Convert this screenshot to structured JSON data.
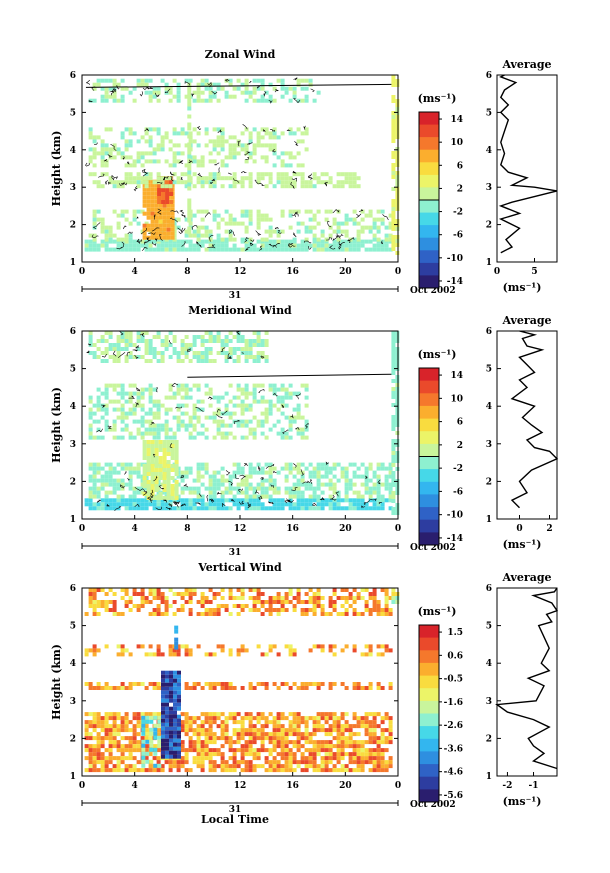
{
  "colors": {
    "ramp": [
      "#2a1e6e",
      "#2d3da0",
      "#2f62c6",
      "#2e8fe0",
      "#33b6ef",
      "#46d8e8",
      "#8ef0d0",
      "#c9f59c",
      "#ecf468",
      "#f9dc3f",
      "#fbae2e",
      "#f5782c",
      "#ea4a2b",
      "#d8232a"
    ]
  },
  "panels": [
    {
      "id": "zonal",
      "title": "Zonal Wind",
      "ylabel": "Height (km)",
      "yticks": [
        "1",
        "2",
        "3",
        "4",
        "5",
        "6"
      ],
      "xticks": [
        "0",
        "4",
        "8",
        "12",
        "16",
        "20",
        "0"
      ],
      "date_day": "31",
      "date_suffix": "Oct 2002",
      "xlabel": "",
      "cbar_unit": "(ms⁻¹)",
      "cbar_ticks": [
        "14",
        "10",
        "6",
        "2",
        "-2",
        "-6",
        "-10",
        "-14"
      ],
      "avg_title": "Average",
      "avg_xticks": [
        "0",
        "5"
      ],
      "avg_xlabel": "(ms⁻¹)"
    },
    {
      "id": "meridional",
      "title": "Meridional Wind",
      "ylabel": "Height (km)",
      "yticks": [
        "1",
        "2",
        "3",
        "4",
        "5",
        "6"
      ],
      "xticks": [
        "0",
        "4",
        "8",
        "12",
        "16",
        "20",
        "0"
      ],
      "date_day": "31",
      "date_suffix": "Oct 2002",
      "xlabel": "",
      "cbar_unit": "(ms⁻¹)",
      "cbar_ticks": [
        "14",
        "10",
        "6",
        "2",
        "-2",
        "-6",
        "-10",
        "-14"
      ],
      "avg_title": "Average",
      "avg_xticks": [
        "0",
        "2"
      ],
      "avg_xlabel": "(ms⁻¹)"
    },
    {
      "id": "vertical",
      "title": "Vertical Wind",
      "ylabel": "Height (km)",
      "yticks": [
        "1",
        "2",
        "3",
        "4",
        "5",
        "6"
      ],
      "xticks": [
        "0",
        "4",
        "8",
        "12",
        "16",
        "20",
        "0"
      ],
      "date_day": "31",
      "date_suffix": "Oct 2002",
      "xlabel": "Local Time",
      "cbar_unit": "(ms⁻¹)",
      "cbar_ticks": [
        "1.5",
        "0.6",
        "-0.5",
        "-1.6",
        "-2.6",
        "-3.6",
        "-4.6",
        "-5.6"
      ],
      "avg_title": "Average",
      "avg_xticks": [
        "-2",
        "-1"
      ],
      "avg_xlabel": "(ms⁻¹)"
    }
  ],
  "chart_data": [
    {
      "type": "heatmap",
      "title": "Zonal Wind",
      "ylabel": "Height (km)",
      "ylim": [
        1,
        6
      ],
      "xlim": [
        0,
        24
      ],
      "clim": [
        -16,
        16
      ],
      "blobs": [
        {
          "x": [
            0.2,
            23.5
          ],
          "y": [
            1.35,
            1.6
          ],
          "v": -1,
          "d": 0.85
        },
        {
          "x": [
            0.5,
            23.5
          ],
          "y": [
            1.6,
            2.4
          ],
          "v": 0.5,
          "d": 0.4
        },
        {
          "x": [
            4.6,
            6.8
          ],
          "y": [
            1.7,
            3.2
          ],
          "v": 8,
          "d": 0.95
        },
        {
          "x": [
            5.7,
            6.7
          ],
          "y": [
            2.6,
            3.3
          ],
          "v": 12,
          "d": 0.95
        },
        {
          "x": [
            0.5,
            21
          ],
          "y": [
            3.0,
            3.4
          ],
          "v": 1,
          "d": 0.6
        },
        {
          "x": [
            0.5,
            17
          ],
          "y": [
            3.6,
            4.6
          ],
          "v": 0.5,
          "d": 0.45
        },
        {
          "x": [
            0.5,
            18
          ],
          "y": [
            5.3,
            5.9
          ],
          "v": 0,
          "d": 0.45
        },
        {
          "x": [
            8.0,
            8.3
          ],
          "y": [
            1.8,
            5.8
          ],
          "v": 1,
          "d": 0.8
        },
        {
          "x": [
            23.5,
            24
          ],
          "y": [
            1.2,
            6.0
          ],
          "v": 3,
          "d": 0.8
        }
      ],
      "avg_profile": {
        "xlim": [
          0,
          8
        ],
        "x": [
          0.5,
          2.0,
          1.2,
          3.0,
          0.5,
          3.0,
          0.5,
          2.0,
          6.0,
          8.0,
          5.0,
          2.0,
          4.0,
          1.5,
          0.5,
          1.0,
          0.5,
          1.0,
          1.5,
          0.5,
          1.5,
          0.5,
          1.0,
          2.5,
          0.5,
          1.0
        ],
        "y": [
          1.25,
          1.4,
          1.6,
          1.9,
          2.15,
          2.3,
          2.5,
          2.6,
          2.8,
          2.9,
          3.0,
          3.05,
          3.25,
          3.4,
          3.6,
          3.9,
          4.2,
          4.5,
          4.8,
          5.0,
          5.2,
          5.4,
          5.6,
          5.8,
          5.95,
          6.0
        ]
      }
    },
    {
      "type": "heatmap",
      "title": "Meridional Wind",
      "ylabel": "Height (km)",
      "ylim": [
        1,
        6
      ],
      "xlim": [
        0,
        24
      ],
      "clim": [
        -16,
        16
      ],
      "blobs": [
        {
          "x": [
            0.2,
            23.5
          ],
          "y": [
            1.3,
            1.55
          ],
          "v": -3,
          "d": 0.9
        },
        {
          "x": [
            0.5,
            23.5
          ],
          "y": [
            1.55,
            2.5
          ],
          "v": -0.5,
          "d": 0.6
        },
        {
          "x": [
            4.6,
            7.2
          ],
          "y": [
            1.6,
            3.1
          ],
          "v": 2,
          "d": 0.85
        },
        {
          "x": [
            0.5,
            17
          ],
          "y": [
            3.2,
            4.6
          ],
          "v": 0,
          "d": 0.5
        },
        {
          "x": [
            0.5,
            14
          ],
          "y": [
            5.2,
            6.0
          ],
          "v": 0,
          "d": 0.55
        },
        {
          "x": [
            23.5,
            24
          ],
          "y": [
            1.2,
            6.0
          ],
          "v": -1,
          "d": 0.8
        }
      ],
      "avg_profile": {
        "xlim": [
          -1.5,
          2.5
        ],
        "x": [
          0.0,
          -0.5,
          0.5,
          0.0,
          0.8,
          2.5,
          2.0,
          1.0,
          0.5,
          1.5,
          0.8,
          0.2,
          1.0,
          -0.5,
          0.5,
          0.0,
          1.0,
          0.5,
          0.0,
          1.5,
          0.5,
          0.2,
          1.0,
          0.0,
          0.0
        ],
        "y": [
          1.3,
          1.5,
          1.7,
          2.0,
          2.3,
          2.6,
          2.8,
          2.9,
          3.1,
          3.3,
          3.5,
          3.7,
          4.0,
          4.2,
          4.5,
          4.7,
          4.9,
          5.1,
          5.3,
          5.5,
          5.6,
          5.8,
          5.9,
          6.0,
          6.0
        ]
      }
    },
    {
      "type": "heatmap",
      "title": "Vertical Wind",
      "xlabel": "Local Time",
      "ylabel": "Height (km)",
      "ylim": [
        1,
        6
      ],
      "xlim": [
        0,
        24
      ],
      "clim": [
        -6.6,
        2.2
      ],
      "blobs": [
        {
          "x": [
            0.2,
            23.5
          ],
          "y": [
            1.2,
            2.7
          ],
          "v": 0.2,
          "d": 0.75
        },
        {
          "x": [
            0.2,
            23.5
          ],
          "y": [
            3.3,
            3.5
          ],
          "v": 0.3,
          "d": 0.55
        },
        {
          "x": [
            0.2,
            23.5
          ],
          "y": [
            4.2,
            4.5
          ],
          "v": 0.2,
          "d": 0.4
        },
        {
          "x": [
            0.2,
            23.5
          ],
          "y": [
            5.3,
            6.0
          ],
          "v": 0.1,
          "d": 0.55
        },
        {
          "x": [
            4.5,
            5.8
          ],
          "y": [
            1.3,
            2.6
          ],
          "v": -2.5,
          "d": 0.7
        },
        {
          "x": [
            6.0,
            7.4
          ],
          "y": [
            1.5,
            3.8
          ],
          "v": -5.5,
          "d": 0.95
        },
        {
          "x": [
            7.0,
            7.3
          ],
          "y": [
            4.4,
            5.0
          ],
          "v": -4.5,
          "d": 0.9
        },
        {
          "x": [
            23.5,
            24
          ],
          "y": [
            5.6,
            6.0
          ],
          "v": -1.5,
          "d": 0.8
        }
      ],
      "avg_profile": {
        "xlim": [
          -2.4,
          -0.1
        ],
        "x": [
          -0.1,
          -1.0,
          -0.6,
          -1.0,
          -1.2,
          -0.4,
          -1.0,
          -2.0,
          -2.4,
          -0.9,
          -0.6,
          -1.2,
          -0.4,
          -0.7,
          -0.4,
          -0.6,
          -0.8,
          -0.3,
          -0.5,
          -0.1,
          -0.3,
          -1.0,
          -0.2,
          -0.1
        ],
        "y": [
          1.2,
          1.4,
          1.6,
          1.8,
          2.0,
          2.3,
          2.5,
          2.7,
          2.9,
          3.0,
          3.4,
          3.6,
          3.8,
          4.0,
          4.4,
          4.7,
          5.0,
          5.1,
          5.3,
          5.4,
          5.6,
          5.8,
          5.9,
          6.0
        ]
      }
    }
  ]
}
